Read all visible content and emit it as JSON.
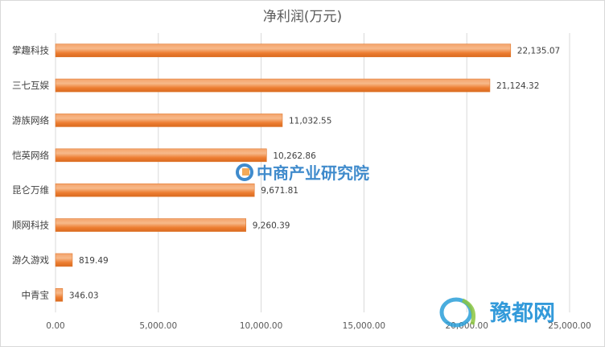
{
  "chart_data": {
    "type": "bar",
    "orientation": "horizontal",
    "title": "净利润(万元)",
    "categories": [
      "掌趣科技",
      "三七互娱",
      "游族网络",
      "恺英网络",
      "昆仑万维",
      "顺网科技",
      "游久游戏",
      "中青宝"
    ],
    "values": [
      22135.07,
      21124.32,
      11032.55,
      10262.86,
      9671.81,
      9260.39,
      819.49,
      346.03
    ],
    "value_labels": [
      "22,135.07",
      "21,124.32",
      "11,032.55",
      "10,262.86",
      "9,671.81",
      "9,260.39",
      "819.49",
      "346.03"
    ],
    "xlim": [
      0,
      25000
    ],
    "x_ticks": [
      0,
      5000,
      10000,
      15000,
      20000,
      25000
    ],
    "x_tick_labels": [
      "0.00",
      "5,000.00",
      "10,000.00",
      "15,000.00",
      "20,000.00",
      "25,000.00"
    ],
    "xlabel": "",
    "ylabel": "",
    "grid": "vertical",
    "legend": "none",
    "colors": {
      "bar": "#ed7d31",
      "bar_highlight": "#f7b98a",
      "grid": "#d9d9d9",
      "text": "#595959"
    }
  },
  "watermarks": {
    "center": "中商产业研究院",
    "corner": "豫都网"
  }
}
